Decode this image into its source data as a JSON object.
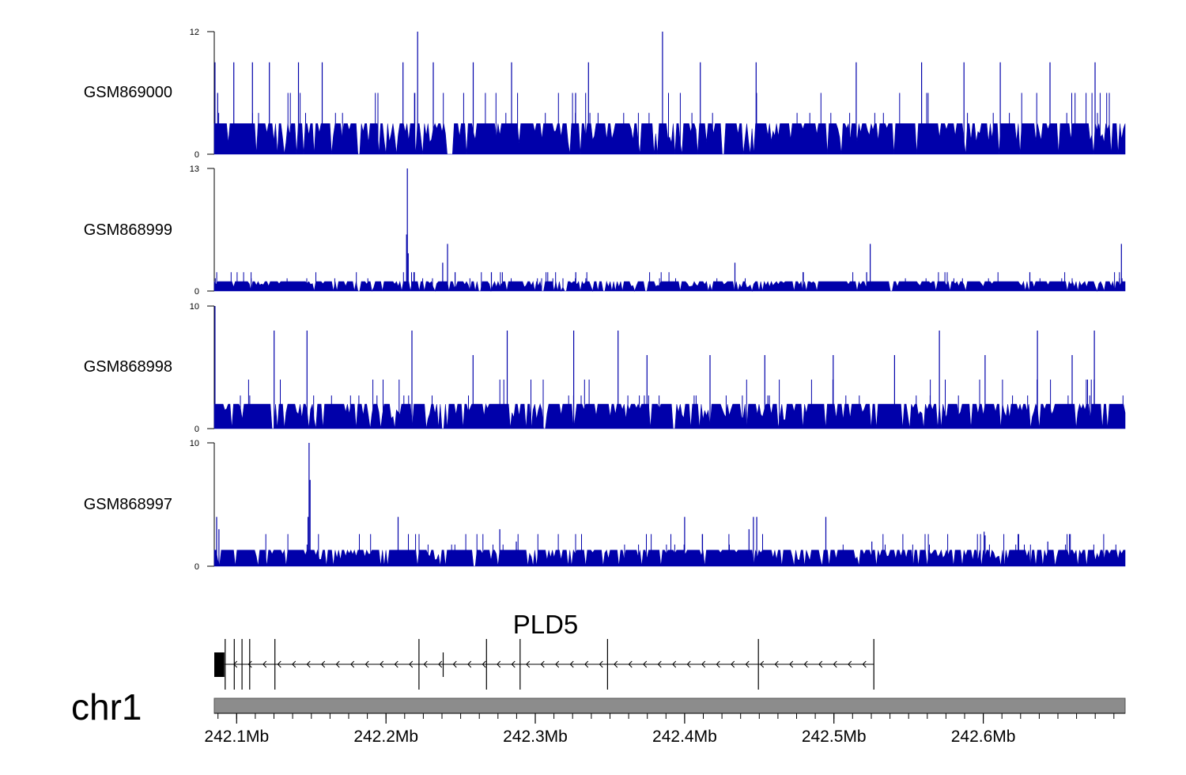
{
  "chart_data": {
    "type": "genome-track",
    "chromosome": "chr1",
    "xlim_mb": [
      242.085,
      242.695
    ],
    "x_ticks": [
      242.1,
      242.2,
      242.3,
      242.4,
      242.5,
      242.6
    ],
    "x_tick_labels": [
      "242.1Mb",
      "242.2Mb",
      "242.3Mb",
      "242.4Mb",
      "242.5Mb",
      "242.6Mb"
    ],
    "tracks": [
      {
        "name": "GSM869000",
        "ymax": 12,
        "yticks": [
          "0",
          "12"
        ],
        "baseline_level": 3,
        "color": "#0000aa",
        "spikes": [
          {
            "x": 242.0855,
            "h": 9
          },
          {
            "x": 242.0873,
            "h": 6
          },
          {
            "x": 242.0981,
            "h": 9
          },
          {
            "x": 242.1106,
            "h": 9
          },
          {
            "x": 242.1219,
            "h": 9
          },
          {
            "x": 242.1414,
            "h": 9
          },
          {
            "x": 242.1573,
            "h": 9
          },
          {
            "x": 242.2114,
            "h": 9
          },
          {
            "x": 242.2212,
            "h": 12
          },
          {
            "x": 242.2317,
            "h": 9
          },
          {
            "x": 242.2584,
            "h": 9
          },
          {
            "x": 242.2841,
            "h": 9
          },
          {
            "x": 242.3356,
            "h": 9
          },
          {
            "x": 242.3852,
            "h": 12
          },
          {
            "x": 242.4105,
            "h": 9
          },
          {
            "x": 242.4479,
            "h": 9
          },
          {
            "x": 242.5149,
            "h": 9
          },
          {
            "x": 242.5587,
            "h": 9
          },
          {
            "x": 242.5871,
            "h": 9
          },
          {
            "x": 242.6114,
            "h": 9
          },
          {
            "x": 242.6447,
            "h": 9
          },
          {
            "x": 242.6749,
            "h": 9
          }
        ]
      },
      {
        "name": "GSM868999",
        "ymax": 13,
        "yticks": [
          "0",
          "13"
        ],
        "baseline_level": 1,
        "color": "#0000aa",
        "spikes": [
          {
            "x": 242.2143,
            "h": 13
          },
          {
            "x": 242.2138,
            "h": 6
          },
          {
            "x": 242.2149,
            "h": 4
          },
          {
            "x": 242.2412,
            "h": 5
          },
          {
            "x": 242.238,
            "h": 3
          },
          {
            "x": 242.2463,
            "h": 2
          },
          {
            "x": 242.2706,
            "h": 2
          },
          {
            "x": 242.3271,
            "h": 2
          },
          {
            "x": 242.4337,
            "h": 3
          },
          {
            "x": 242.4795,
            "h": 2
          },
          {
            "x": 242.5243,
            "h": 5
          },
          {
            "x": 242.5219,
            "h": 2
          },
          {
            "x": 242.6312,
            "h": 2
          },
          {
            "x": 242.6925,
            "h": 5
          }
        ]
      },
      {
        "name": "GSM868998",
        "ymax": 10,
        "yticks": [
          "0",
          "10"
        ],
        "baseline_level": 2,
        "color": "#0000aa",
        "spikes": [
          {
            "x": 242.0855,
            "h": 10
          },
          {
            "x": 242.1251,
            "h": 8
          },
          {
            "x": 242.1471,
            "h": 8
          },
          {
            "x": 242.2174,
            "h": 8
          },
          {
            "x": 242.2583,
            "h": 6
          },
          {
            "x": 242.2812,
            "h": 8
          },
          {
            "x": 242.3257,
            "h": 8
          },
          {
            "x": 242.3554,
            "h": 8
          },
          {
            "x": 242.3748,
            "h": 6
          },
          {
            "x": 242.417,
            "h": 6
          },
          {
            "x": 242.4537,
            "h": 6
          },
          {
            "x": 242.4995,
            "h": 6
          },
          {
            "x": 242.5406,
            "h": 6
          },
          {
            "x": 242.5706,
            "h": 8
          },
          {
            "x": 242.6012,
            "h": 6
          },
          {
            "x": 242.6363,
            "h": 8
          },
          {
            "x": 242.6595,
            "h": 6
          },
          {
            "x": 242.6744,
            "h": 8
          }
        ]
      },
      {
        "name": "GSM868997",
        "ymax": 10,
        "yticks": [
          "0",
          "10"
        ],
        "baseline_level": 1.3,
        "color": "#0000aa",
        "spikes": [
          {
            "x": 242.1485,
            "h": 10
          },
          {
            "x": 242.1492,
            "h": 7
          },
          {
            "x": 242.1478,
            "h": 4
          },
          {
            "x": 242.0866,
            "h": 4
          },
          {
            "x": 242.0881,
            "h": 3
          },
          {
            "x": 242.2081,
            "h": 4
          },
          {
            "x": 242.2762,
            "h": 3
          },
          {
            "x": 242.2873,
            "h": 2
          },
          {
            "x": 242.4,
            "h": 4
          },
          {
            "x": 242.4461,
            "h": 4
          },
          {
            "x": 242.4483,
            "h": 4
          },
          {
            "x": 242.4431,
            "h": 3
          },
          {
            "x": 242.4946,
            "h": 4
          },
          {
            "x": 242.5254,
            "h": 2
          },
          {
            "x": 242.6006,
            "h": 2.8
          },
          {
            "x": 242.6012,
            "h": 2.5
          },
          {
            "x": 242.6432,
            "h": 2
          }
        ]
      }
    ],
    "gene": {
      "name": "PLD5",
      "strand": "-",
      "start": 242.085,
      "end": 242.5267,
      "coding_block": [
        242.085,
        242.0918
      ],
      "exons": [
        242.0923,
        242.0984,
        242.1036,
        242.1087,
        242.1256,
        242.2221,
        242.2383,
        242.2673,
        242.2898,
        242.3484,
        242.4494,
        242.5267
      ]
    }
  }
}
